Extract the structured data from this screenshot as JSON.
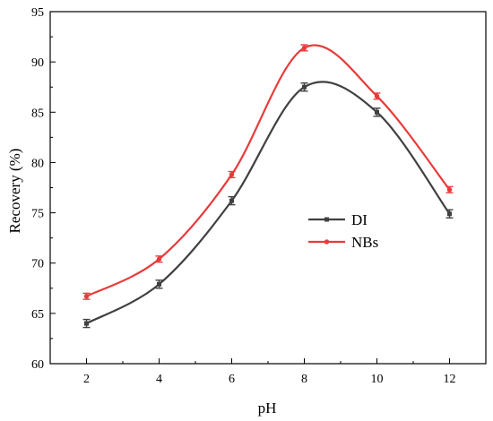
{
  "chart_data": {
    "type": "line",
    "title": "",
    "xlabel": "pH",
    "ylabel": "Recovery (%)",
    "x": [
      2,
      4,
      6,
      8,
      10,
      12
    ],
    "xlim": [
      1,
      13
    ],
    "ylim": [
      60,
      95
    ],
    "xticks": [
      "2",
      "4",
      "6",
      "8",
      "10",
      "12"
    ],
    "yticks": [
      "60",
      "65",
      "70",
      "75",
      "80",
      "85",
      "90",
      "95"
    ],
    "grid": false,
    "legend": "center-right",
    "series": [
      {
        "name": "DI",
        "color": "#404040",
        "values": [
          64.0,
          67.9,
          76.2,
          87.5,
          85.0,
          74.9
        ],
        "error": [
          0.4,
          0.4,
          0.4,
          0.4,
          0.4,
          0.4
        ]
      },
      {
        "name": "NBs",
        "color": "#e83a3a",
        "values": [
          66.7,
          70.4,
          78.8,
          91.4,
          86.6,
          77.3
        ],
        "error": [
          0.3,
          0.3,
          0.3,
          0.3,
          0.3,
          0.3
        ]
      }
    ]
  }
}
